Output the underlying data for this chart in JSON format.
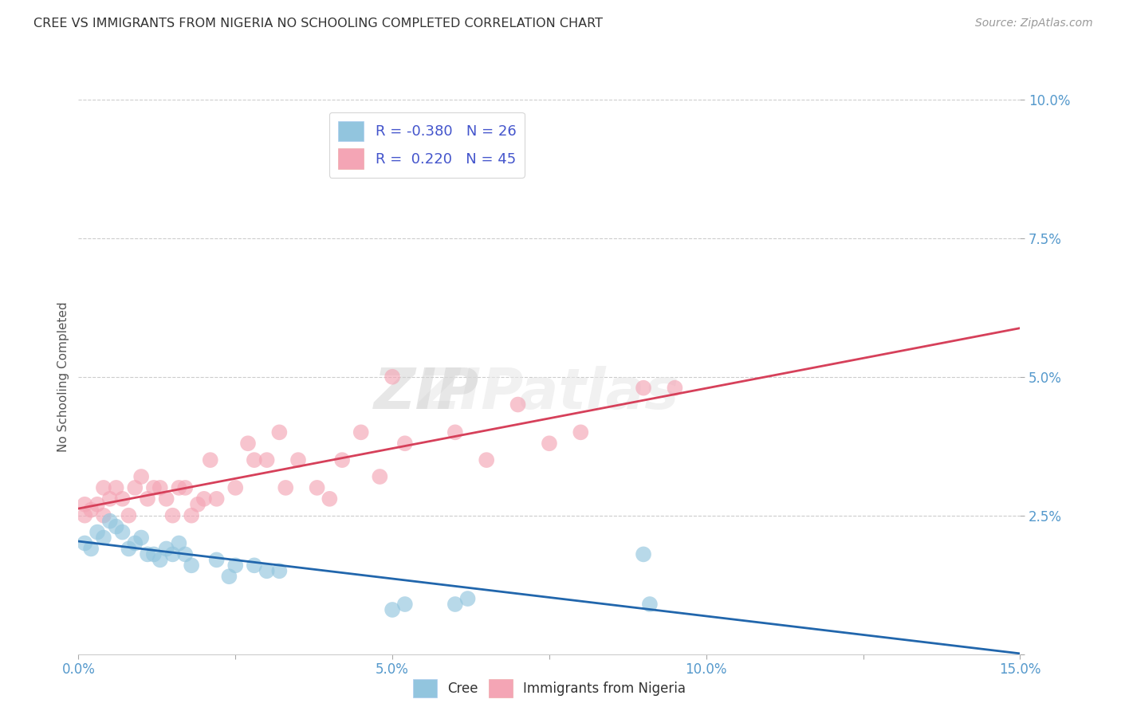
{
  "title": "CREE VS IMMIGRANTS FROM NIGERIA NO SCHOOLING COMPLETED CORRELATION CHART",
  "source": "Source: ZipAtlas.com",
  "ylabel": "No Schooling Completed",
  "xlim": [
    0.0,
    0.15
  ],
  "ylim": [
    0.0,
    0.1
  ],
  "xticks": [
    0.0,
    0.025,
    0.05,
    0.075,
    0.1,
    0.125,
    0.15
  ],
  "xtick_labels": [
    "0.0%",
    "",
    "",
    "",
    "",
    "",
    "15.0%"
  ],
  "yticks": [
    0.0,
    0.025,
    0.05,
    0.075,
    0.1
  ],
  "ytick_labels": [
    "",
    "2.5%",
    "5.0%",
    "7.5%",
    "10.0%"
  ],
  "background_color": "#ffffff",
  "grid_color": "#cccccc",
  "blue_color": "#92c5de",
  "pink_color": "#f4a5b5",
  "blue_line_color": "#2166ac",
  "pink_line_color": "#d6405a",
  "legend_text_color": "#4455cc",
  "title_color": "#333333",
  "cree_x": [
    0.001,
    0.002,
    0.003,
    0.004,
    0.005,
    0.006,
    0.007,
    0.008,
    0.009,
    0.01,
    0.011,
    0.012,
    0.013,
    0.014,
    0.015,
    0.016,
    0.017,
    0.018,
    0.022,
    0.024,
    0.025,
    0.028,
    0.03,
    0.032,
    0.05,
    0.052,
    0.06,
    0.062,
    0.09,
    0.091
  ],
  "cree_y": [
    0.02,
    0.019,
    0.022,
    0.021,
    0.024,
    0.023,
    0.022,
    0.019,
    0.02,
    0.021,
    0.018,
    0.018,
    0.017,
    0.019,
    0.018,
    0.02,
    0.018,
    0.016,
    0.017,
    0.014,
    0.016,
    0.016,
    0.015,
    0.015,
    0.008,
    0.009,
    0.009,
    0.01,
    0.018,
    0.009
  ],
  "nigeria_x": [
    0.001,
    0.001,
    0.002,
    0.003,
    0.004,
    0.004,
    0.005,
    0.006,
    0.007,
    0.008,
    0.009,
    0.01,
    0.011,
    0.012,
    0.013,
    0.014,
    0.015,
    0.016,
    0.017,
    0.018,
    0.019,
    0.02,
    0.021,
    0.022,
    0.025,
    0.027,
    0.028,
    0.03,
    0.032,
    0.033,
    0.035,
    0.038,
    0.04,
    0.042,
    0.045,
    0.048,
    0.05,
    0.052,
    0.06,
    0.065,
    0.07,
    0.075,
    0.08,
    0.09,
    0.095
  ],
  "nigeria_y": [
    0.027,
    0.025,
    0.026,
    0.027,
    0.03,
    0.025,
    0.028,
    0.03,
    0.028,
    0.025,
    0.03,
    0.032,
    0.028,
    0.03,
    0.03,
    0.028,
    0.025,
    0.03,
    0.03,
    0.025,
    0.027,
    0.028,
    0.035,
    0.028,
    0.03,
    0.038,
    0.035,
    0.035,
    0.04,
    0.03,
    0.035,
    0.03,
    0.028,
    0.035,
    0.04,
    0.032,
    0.05,
    0.038,
    0.04,
    0.035,
    0.045,
    0.038,
    0.04,
    0.048,
    0.048
  ],
  "blue_line_x": [
    0.0,
    0.15
  ],
  "blue_line_y": [
    0.02,
    0.0
  ],
  "pink_line_x": [
    0.0,
    0.15
  ],
  "pink_line_y": [
    0.025,
    0.05
  ]
}
